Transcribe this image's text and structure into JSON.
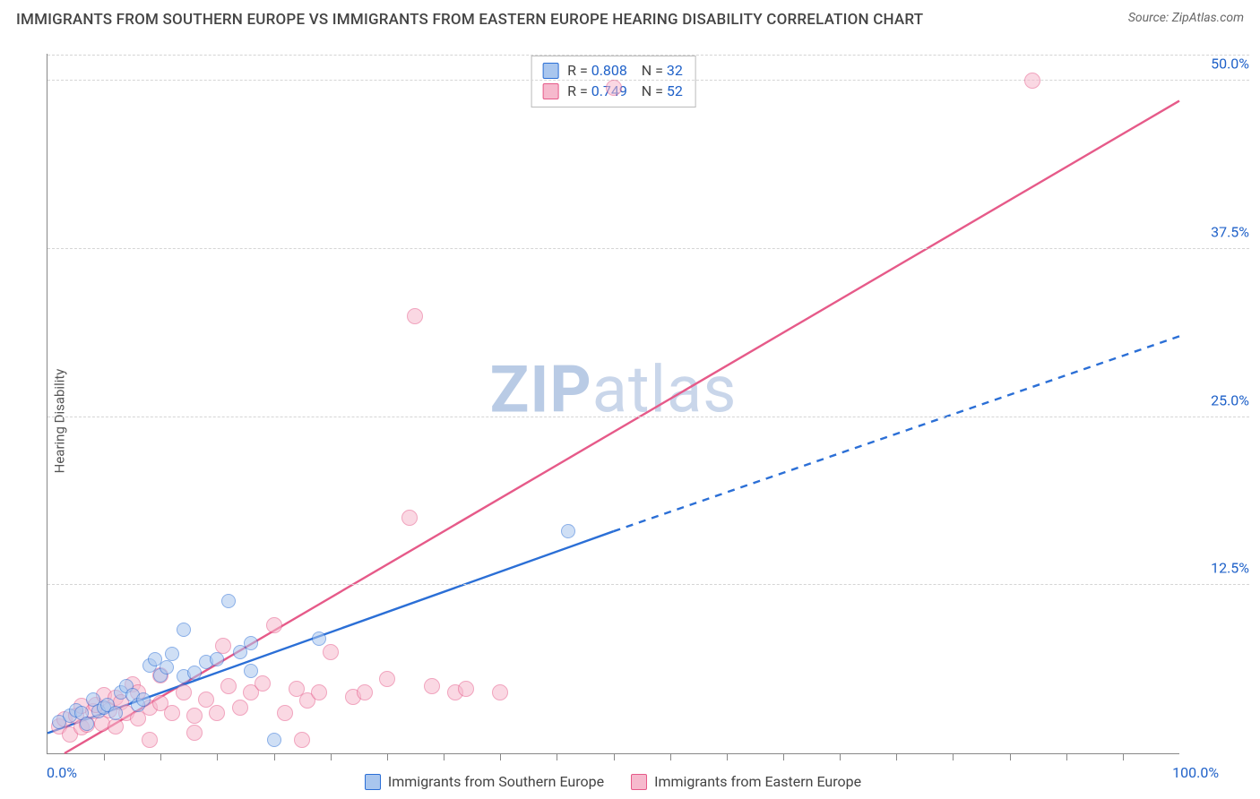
{
  "header": {
    "title": "IMMIGRANTS FROM SOUTHERN EUROPE VS IMMIGRANTS FROM EASTERN EUROPE HEARING DISABILITY CORRELATION CHART",
    "source_prefix": "Source: ",
    "source_link": "ZipAtlas.com"
  },
  "axes": {
    "ylabel": "Hearing Disability",
    "x_min_label": "0.0%",
    "x_max_label": "100.0%",
    "xlim": [
      0,
      100
    ],
    "ylim": [
      0,
      52
    ],
    "yticks": [
      {
        "v": 12.5,
        "label": "12.5%"
      },
      {
        "v": 25.0,
        "label": "25.0%"
      },
      {
        "v": 37.5,
        "label": "37.5%"
      },
      {
        "v": 50.0,
        "label": "50.0%"
      }
    ],
    "xticks_minor": [
      5,
      10,
      15,
      20,
      25,
      30,
      35,
      40,
      45,
      50,
      55,
      60,
      65,
      70,
      75,
      80,
      85,
      90,
      95
    ]
  },
  "watermark": {
    "bold": "ZIP",
    "rest": "atlas"
  },
  "series": {
    "blue": {
      "name": "Immigrants from Southern Europe",
      "R": "0.808",
      "N": "32",
      "stroke": "#2b6fd6",
      "fill": "#a9c6ee",
      "fill_opacity": 0.55,
      "marker_r": 8,
      "line": {
        "x1": 0,
        "y1": 1.5,
        "x2": 50,
        "y2": 16.5,
        "dash_from_x": 50,
        "dash_to_x": 100,
        "dash_to_y": 31.0
      },
      "points": [
        [
          1,
          2.3
        ],
        [
          2,
          2.8
        ],
        [
          2.5,
          3.2
        ],
        [
          3,
          3.0
        ],
        [
          3.5,
          2.2
        ],
        [
          4,
          4.0
        ],
        [
          4.5,
          3.1
        ],
        [
          5,
          3.4
        ],
        [
          5.3,
          3.6
        ],
        [
          6,
          3.0
        ],
        [
          6.5,
          4.5
        ],
        [
          7,
          5.0
        ],
        [
          7.5,
          4.3
        ],
        [
          8,
          3.6
        ],
        [
          8.5,
          4.0
        ],
        [
          9,
          6.5
        ],
        [
          9.5,
          7.0
        ],
        [
          10,
          5.8
        ],
        [
          10.5,
          6.4
        ],
        [
          11,
          7.4
        ],
        [
          12,
          5.7
        ],
        [
          12,
          9.2
        ],
        [
          13,
          6.0
        ],
        [
          14,
          6.8
        ],
        [
          15,
          7.0
        ],
        [
          16,
          11.3
        ],
        [
          17,
          7.5
        ],
        [
          18,
          6.1
        ],
        [
          18,
          8.2
        ],
        [
          20,
          1.0
        ],
        [
          24,
          8.5
        ],
        [
          46,
          16.5
        ]
      ]
    },
    "pink": {
      "name": "Immigrants from Eastern Europe",
      "R": "0.749",
      "N": "52",
      "stroke": "#e65a89",
      "fill": "#f6b9cd",
      "fill_opacity": 0.55,
      "marker_r": 9,
      "line": {
        "x1": 1.5,
        "y1": 0,
        "x2": 100,
        "y2": 48.5
      },
      "points": [
        [
          1,
          2.0
        ],
        [
          1.5,
          2.5
        ],
        [
          2,
          1.4
        ],
        [
          2.5,
          2.8
        ],
        [
          3,
          1.9
        ],
        [
          3,
          3.5
        ],
        [
          3.5,
          2.1
        ],
        [
          4,
          3.1
        ],
        [
          4.3,
          3.6
        ],
        [
          4.8,
          2.2
        ],
        [
          5,
          4.3
        ],
        [
          5.5,
          3.2
        ],
        [
          6,
          2.0
        ],
        [
          6,
          4.1
        ],
        [
          6.5,
          3.8
        ],
        [
          7,
          3.0
        ],
        [
          7.5,
          5.1
        ],
        [
          8,
          2.6
        ],
        [
          8,
          4.5
        ],
        [
          9,
          3.4
        ],
        [
          9,
          1.0
        ],
        [
          10,
          3.7
        ],
        [
          10,
          5.8
        ],
        [
          11,
          3.0
        ],
        [
          12,
          4.5
        ],
        [
          13,
          2.8
        ],
        [
          13,
          1.5
        ],
        [
          14,
          4.0
        ],
        [
          15,
          3.0
        ],
        [
          15.5,
          8.0
        ],
        [
          16,
          5.0
        ],
        [
          17,
          3.4
        ],
        [
          18,
          4.5
        ],
        [
          19,
          5.2
        ],
        [
          20,
          9.5
        ],
        [
          21,
          3.0
        ],
        [
          22,
          4.8
        ],
        [
          22.5,
          1.0
        ],
        [
          23,
          3.9
        ],
        [
          24,
          4.5
        ],
        [
          25,
          7.5
        ],
        [
          27,
          4.2
        ],
        [
          28,
          4.5
        ],
        [
          30,
          5.5
        ],
        [
          32,
          17.5
        ],
        [
          32.5,
          32.5
        ],
        [
          34,
          5.0
        ],
        [
          36,
          4.5
        ],
        [
          37,
          4.8
        ],
        [
          40,
          4.5
        ],
        [
          50,
          49.5
        ],
        [
          87,
          50.0
        ]
      ]
    }
  },
  "legend_labels": {
    "R": "R =",
    "N": "N ="
  },
  "colors": {
    "axis": "#888",
    "grid": "#d5d5d5",
    "tick_text": "#2062c9",
    "title_text": "#444"
  }
}
